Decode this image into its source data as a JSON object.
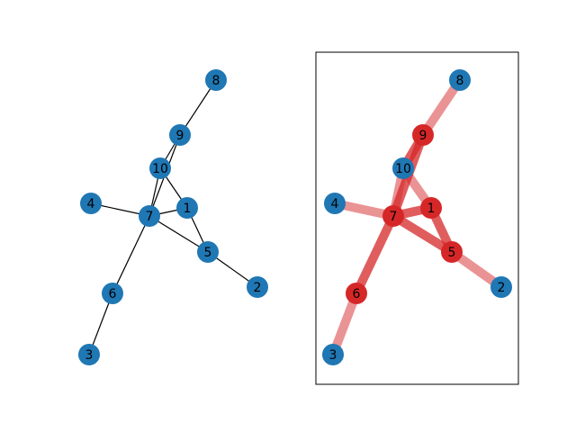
{
  "colors": {
    "node_default": "#1f77b4",
    "node_highlight": "#d62728",
    "edge_default": "#000000",
    "edge_highlight_strong": "#d62728",
    "edge_highlight_light": "#e8878a",
    "frame": "#000000"
  },
  "left_graph": {
    "nodes": [
      {
        "id": "1",
        "label": "1"
      },
      {
        "id": "2",
        "label": "2"
      },
      {
        "id": "3",
        "label": "3"
      },
      {
        "id": "4",
        "label": "4"
      },
      {
        "id": "5",
        "label": "5"
      },
      {
        "id": "6",
        "label": "6"
      },
      {
        "id": "7",
        "label": "7"
      },
      {
        "id": "8",
        "label": "8"
      },
      {
        "id": "9",
        "label": "9"
      },
      {
        "id": "10",
        "label": "10"
      }
    ],
    "edges": [
      [
        "8",
        "9"
      ],
      [
        "9",
        "10"
      ],
      [
        "9",
        "7"
      ],
      [
        "10",
        "7"
      ],
      [
        "10",
        "1"
      ],
      [
        "1",
        "7"
      ],
      [
        "1",
        "5"
      ],
      [
        "7",
        "5"
      ],
      [
        "4",
        "7"
      ],
      [
        "7",
        "6"
      ],
      [
        "6",
        "3"
      ],
      [
        "5",
        "2"
      ]
    ]
  },
  "right_graph": {
    "highlighted_nodes": [
      "9",
      "1",
      "7",
      "5",
      "6"
    ],
    "edges": [
      {
        "from": "8",
        "to": "9",
        "style": "light"
      },
      {
        "from": "9",
        "to": "10",
        "style": "strong"
      },
      {
        "from": "9",
        "to": "7",
        "style": "strong"
      },
      {
        "from": "10",
        "to": "7",
        "style": "light"
      },
      {
        "from": "10",
        "to": "1",
        "style": "light"
      },
      {
        "from": "1",
        "to": "7",
        "style": "strong"
      },
      {
        "from": "1",
        "to": "5",
        "style": "strong"
      },
      {
        "from": "7",
        "to": "5",
        "style": "strong"
      },
      {
        "from": "4",
        "to": "7",
        "style": "light"
      },
      {
        "from": "7",
        "to": "6",
        "style": "strong"
      },
      {
        "from": "6",
        "to": "3",
        "style": "light"
      },
      {
        "from": "5",
        "to": "2",
        "style": "light"
      }
    ]
  }
}
